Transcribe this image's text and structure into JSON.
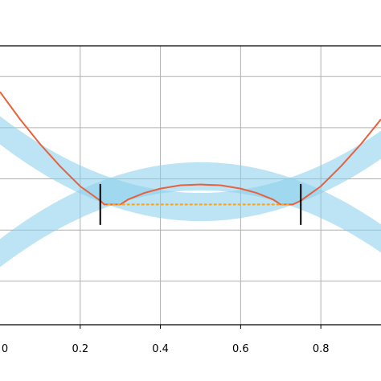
{
  "chart_data": {
    "type": "line",
    "title": "",
    "xlabel": "",
    "ylabel": "",
    "xlim": [
      0,
      0.95
    ],
    "ylim": [
      0.28,
      1.37
    ],
    "x_ticks": [
      0,
      0.2,
      0.4,
      0.6,
      0.8
    ],
    "x_tick_labels": [
      "0",
      "0.2",
      "0.4",
      "0.6",
      "0.8"
    ],
    "y_gridlines": [
      0.45,
      0.65,
      0.85,
      1.05,
      1.25
    ],
    "grid": true,
    "bands": [
      {
        "center": "1.2*(x-0.5)^2 + 0.74",
        "halfwidth": 0.055,
        "color": "#87ceeb"
      },
      {
        "center": "-1.2*(x-0.5)^2 + 0.86",
        "halfwidth": 0.055,
        "color": "#87ceeb"
      }
    ],
    "series": [
      {
        "style": "solid",
        "color": "#e8603c",
        "points": [
          [
            0,
            1.19
          ],
          [
            0.05,
            1.083
          ],
          [
            0.1,
            0.986
          ],
          [
            0.15,
            0.899
          ],
          [
            0.2,
            0.821
          ],
          [
            0.25,
            0.765
          ],
          [
            0.26,
            0.75
          ],
          [
            0.3,
            0.75
          ],
          [
            0.32,
            0.77
          ],
          [
            0.36,
            0.795
          ],
          [
            0.4,
            0.812
          ],
          [
            0.45,
            0.825
          ],
          [
            0.5,
            0.828
          ],
          [
            0.55,
            0.825
          ],
          [
            0.6,
            0.812
          ],
          [
            0.64,
            0.795
          ],
          [
            0.68,
            0.77
          ],
          [
            0.7,
            0.75
          ],
          [
            0.73,
            0.75
          ],
          [
            0.75,
            0.765
          ],
          [
            0.8,
            0.821
          ],
          [
            0.85,
            0.899
          ],
          [
            0.9,
            0.986
          ],
          [
            0.95,
            1.083
          ]
        ]
      },
      {
        "style": "dotted",
        "color": "#f5a623",
        "points": [
          [
            0.27,
            0.75
          ],
          [
            0.72,
            0.75
          ]
        ]
      }
    ],
    "markers": [
      {
        "x": 0.25,
        "y_range": [
          0.67,
          0.83
        ],
        "color": "#000000"
      },
      {
        "x": 0.75,
        "y_range": [
          0.67,
          0.83
        ],
        "color": "#000000"
      }
    ]
  }
}
